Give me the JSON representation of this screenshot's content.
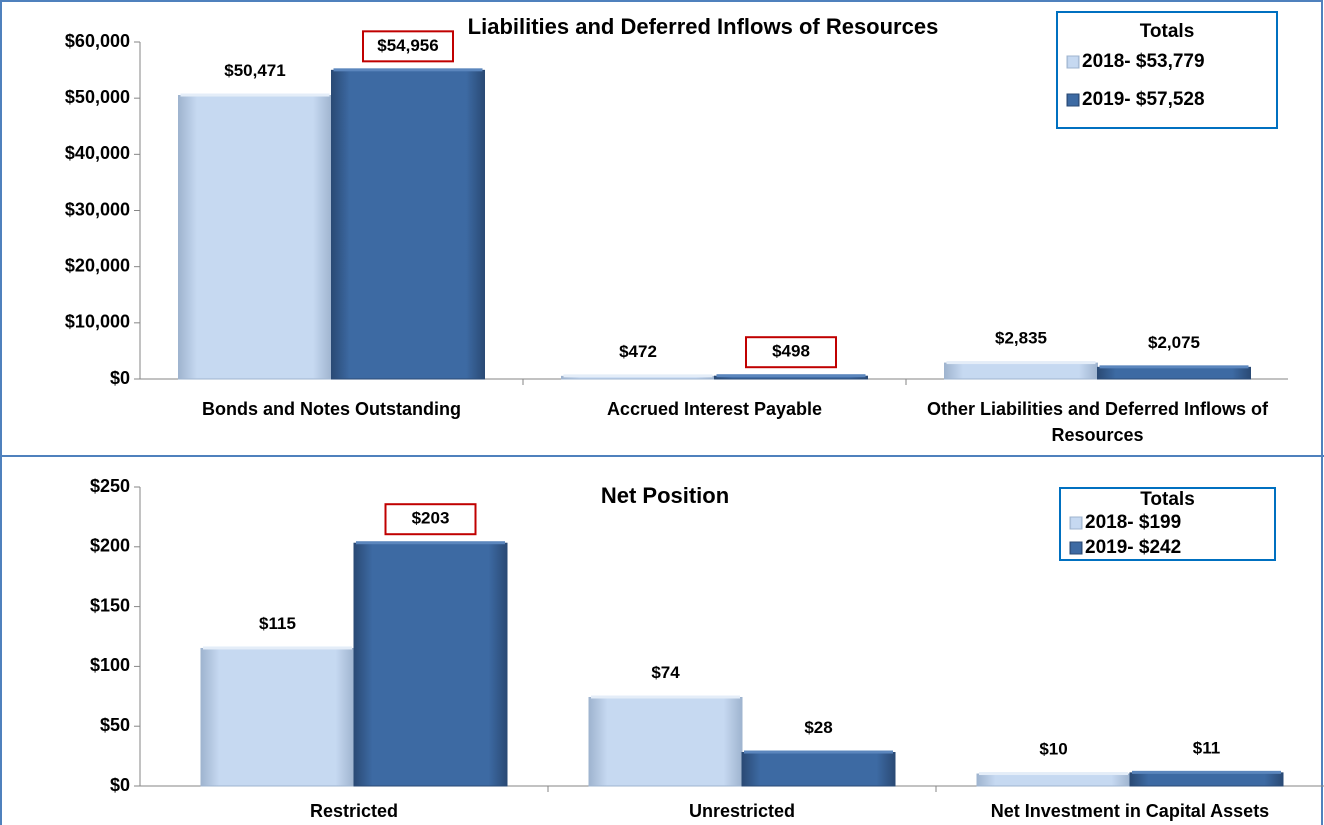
{
  "chart_data": [
    {
      "type": "bar",
      "title": "Liabilities and Deferred Inflows of Resources",
      "categories": [
        "Bonds and Notes Outstanding",
        "Accrued Interest Payable",
        "Other Liabilities and Deferred Inflows of Resources"
      ],
      "series": [
        {
          "name": "2018- $53,779",
          "color": "#c6d9f1",
          "values": [
            50471,
            472,
            2835
          ],
          "value_labels": [
            "$50,471",
            "$472",
            "$2,835"
          ],
          "highlighted": [
            false,
            false,
            false
          ]
        },
        {
          "name": "2019- $57,528",
          "color": "#3d6aa3",
          "values": [
            54956,
            498,
            2075
          ],
          "value_labels": [
            "$54,956",
            "$498",
            "$2,075"
          ],
          "highlighted": [
            true,
            true,
            false
          ]
        }
      ],
      "legend_title": "Totals",
      "legend": "upper right",
      "ylim": [
        0,
        60000
      ],
      "yticks": [
        {
          "value": 0,
          "label": "$0"
        },
        {
          "value": 10000,
          "label": "$10,000"
        },
        {
          "value": 20000,
          "label": "$20,000"
        },
        {
          "value": 30000,
          "label": "$30,000"
        },
        {
          "value": 40000,
          "label": "$40,000"
        },
        {
          "value": 50000,
          "label": "$50,000"
        },
        {
          "value": 60000,
          "label": "$60,000"
        }
      ],
      "grid": false
    },
    {
      "type": "bar",
      "title": "Net Position",
      "categories": [
        "Restricted",
        "Unrestricted",
        "Net Investment in Capital Assets"
      ],
      "series": [
        {
          "name": "2018- $199",
          "color": "#c6d9f1",
          "values": [
            115,
            74,
            10
          ],
          "value_labels": [
            "$115",
            "$74",
            "$10"
          ],
          "highlighted": [
            false,
            false,
            false
          ]
        },
        {
          "name": "2019- $242",
          "color": "#3d6aa3",
          "values": [
            203,
            28,
            11
          ],
          "value_labels": [
            "$203",
            "$28",
            "$11"
          ],
          "highlighted": [
            true,
            false,
            false
          ]
        }
      ],
      "legend_title": "Totals",
      "legend": "upper right",
      "ylim": [
        0,
        250
      ],
      "yticks": [
        {
          "value": 0,
          "label": "$0"
        },
        {
          "value": 50,
          "label": "$50"
        },
        {
          "value": 100,
          "label": "$100"
        },
        {
          "value": 150,
          "label": "$150"
        },
        {
          "value": 200,
          "label": "$200"
        },
        {
          "value": 250,
          "label": "$250"
        }
      ],
      "grid": false
    }
  ]
}
